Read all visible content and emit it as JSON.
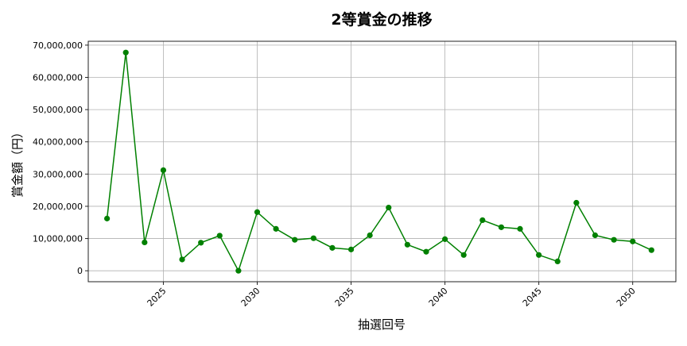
{
  "chart_data": {
    "type": "line",
    "title": "2等賞金の推移",
    "xlabel": "抽選回号",
    "ylabel": "賞金額（円）",
    "x": [
      2022,
      2023,
      2024,
      2025,
      2026,
      2027,
      2028,
      2029,
      2030,
      2031,
      2032,
      2033,
      2034,
      2035,
      2036,
      2037,
      2038,
      2039,
      2040,
      2041,
      2042,
      2043,
      2044,
      2045,
      2046,
      2047,
      2048,
      2049,
      2050,
      2051
    ],
    "series": [
      {
        "values": [
          16200000,
          67700000,
          8800000,
          31200000,
          3500000,
          8700000,
          10900000,
          0,
          18200000,
          13000000,
          9600000,
          10100000,
          7100000,
          6600000,
          11000000,
          19600000,
          8100000,
          5900000,
          9800000,
          4900000,
          15700000,
          13500000,
          13000000,
          4900000,
          2900000,
          21100000,
          11000000,
          9600000,
          9100000,
          6400000
        ],
        "color": "#008000"
      }
    ],
    "xticks": [
      "2025",
      "2030",
      "2035",
      "2040",
      "2045",
      "2050"
    ],
    "yticks": [
      "0",
      "10,000,000",
      "20,000,000",
      "30,000,000",
      "40,000,000",
      "50,000,000",
      "60,000,000",
      "70,000,000"
    ],
    "xlim": [
      2021,
      2052.3
    ],
    "ylim": [
      -3400000,
      71200000
    ],
    "grid": true
  }
}
